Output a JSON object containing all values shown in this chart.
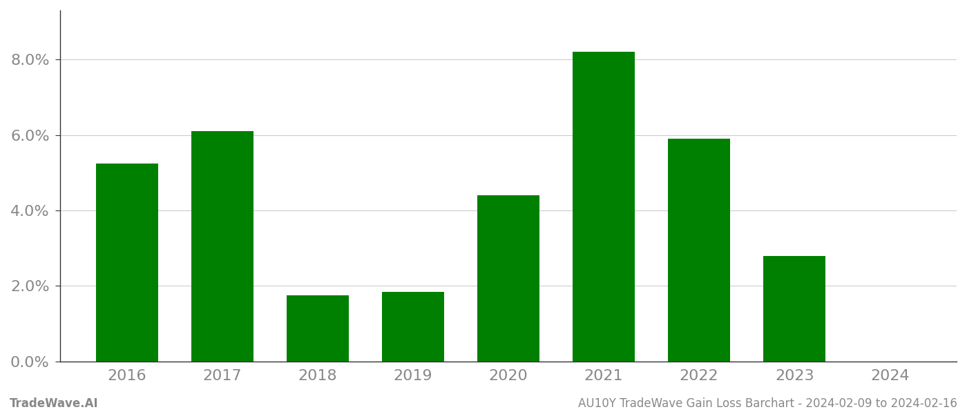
{
  "categories": [
    "2016",
    "2017",
    "2018",
    "2019",
    "2020",
    "2021",
    "2022",
    "2023",
    "2024"
  ],
  "values": [
    0.0525,
    0.061,
    0.0175,
    0.0185,
    0.044,
    0.082,
    0.059,
    0.028,
    0.0
  ],
  "bar_color": "#008000",
  "background_color": "#ffffff",
  "footer_left": "TradeWave.AI",
  "footer_right": "AU10Y TradeWave Gain Loss Barchart - 2024-02-09 to 2024-02-16",
  "ylim": [
    0,
    0.093
  ],
  "yticks": [
    0.0,
    0.02,
    0.04,
    0.06,
    0.08
  ],
  "grid_color": "#cccccc",
  "spine_color": "#333333",
  "tick_label_color": "#888888",
  "footer_color": "#888888",
  "bar_width": 0.65,
  "tick_label_fontsize": 16,
  "footer_fontsize": 12
}
